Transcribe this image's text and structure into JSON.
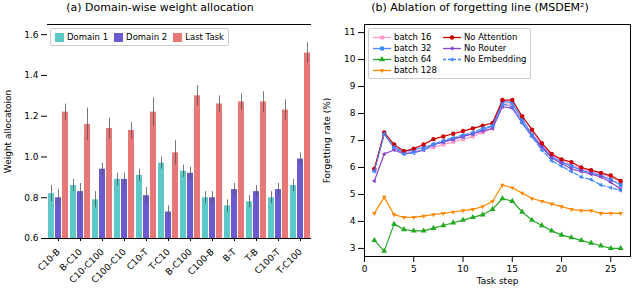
{
  "chart_data": [
    {
      "type": "bar",
      "title": "(a) Domain-wise weight allocation",
      "categories": [
        "C10-B",
        "B-C10",
        "C10-C100",
        "C100-C10",
        "C10-T",
        "T-C10",
        "B-C100",
        "C100-B",
        "B-T",
        "T-B",
        "C100-T",
        "T-C100"
      ],
      "series": [
        {
          "name": "Domain 1",
          "color": "#5ec8c8",
          "values": [
            0.82,
            0.86,
            0.79,
            0.89,
            0.91,
            0.97,
            0.93,
            0.8,
            0.76,
            0.78,
            0.8,
            0.86
          ],
          "errors": [
            0.04,
            0.03,
            0.04,
            0.03,
            0.03,
            0.03,
            0.03,
            0.03,
            0.03,
            0.03,
            0.03,
            0.03
          ]
        },
        {
          "name": "Domain 2",
          "color": "#6a5acd",
          "values": [
            0.8,
            0.83,
            0.94,
            0.89,
            0.81,
            0.73,
            0.92,
            0.8,
            0.84,
            0.83,
            0.84,
            0.99
          ],
          "errors": [
            0.04,
            0.04,
            0.03,
            0.03,
            0.04,
            0.03,
            0.03,
            0.03,
            0.03,
            0.03,
            0.03,
            0.03
          ]
        },
        {
          "name": "Last Task",
          "color": "#e87878",
          "values": [
            1.22,
            1.16,
            1.14,
            1.13,
            1.22,
            1.02,
            1.3,
            1.26,
            1.27,
            1.27,
            1.23,
            1.51
          ],
          "errors": [
            0.04,
            0.08,
            0.05,
            0.04,
            0.07,
            0.06,
            0.05,
            0.04,
            0.04,
            0.05,
            0.05,
            0.05
          ]
        }
      ],
      "ylabel": "Weight allocatoion",
      "ylim": [
        0.6,
        1.65
      ],
      "yticks": [
        0.6,
        0.8,
        {
          "value": 1.0,
          "label": "1.0"
        },
        1.2,
        1.4,
        1.6
      ],
      "legend": "upper left"
    },
    {
      "type": "line",
      "title": "(b) Ablation of forgetting line (MSDEM²)",
      "x": [
        1,
        2,
        3,
        4,
        5,
        6,
        7,
        8,
        9,
        10,
        11,
        12,
        13,
        14,
        15,
        16,
        17,
        18,
        19,
        20,
        21,
        22,
        23,
        24,
        25,
        26
      ],
      "series": [
        {
          "name": "batch 16",
          "color": "#ff99cc",
          "marker": "square",
          "line_style": "solid",
          "values": [
            5.9,
            7.25,
            6.7,
            6.55,
            6.6,
            6.65,
            6.75,
            6.85,
            6.95,
            7.05,
            7.15,
            7.3,
            7.45,
            8.35,
            8.35,
            7.75,
            7.25,
            6.85,
            6.45,
            6.25,
            6.1,
            5.95,
            5.85,
            5.75,
            5.65,
            5.45
          ]
        },
        {
          "name": "batch 32",
          "color": "#4488ff",
          "marker": "square",
          "line_style": "solid",
          "values": [
            5.9,
            7.25,
            6.75,
            6.6,
            6.65,
            6.75,
            6.85,
            6.95,
            7.05,
            7.15,
            7.25,
            7.4,
            7.55,
            8.45,
            8.4,
            7.8,
            7.2,
            6.8,
            6.4,
            6.2,
            6.05,
            5.9,
            5.8,
            5.7,
            5.55,
            5.35
          ]
        },
        {
          "name": "batch 64",
          "color": "#22aa22",
          "marker": "triangle-up",
          "line_style": "solid",
          "values": [
            3.3,
            2.9,
            3.9,
            3.7,
            3.65,
            3.65,
            3.75,
            3.85,
            3.95,
            4.05,
            4.15,
            4.25,
            4.45,
            4.85,
            4.75,
            4.35,
            4.05,
            3.85,
            3.65,
            3.5,
            3.4,
            3.3,
            3.2,
            3.1,
            3.0,
            3.0
          ]
        },
        {
          "name": "batch 128",
          "color": "#ff8800",
          "marker": "triangle-down",
          "line_style": "solid",
          "values": [
            4.3,
            4.9,
            4.25,
            4.15,
            4.15,
            4.2,
            4.25,
            4.3,
            4.35,
            4.4,
            4.45,
            4.55,
            4.75,
            5.35,
            5.25,
            5.05,
            4.85,
            4.75,
            4.65,
            4.55,
            4.45,
            4.4,
            4.4,
            4.3,
            4.3,
            4.3
          ]
        },
        {
          "name": "No Attention",
          "color": "#cc0000",
          "marker": "circle",
          "line_style": "solid",
          "values": [
            5.95,
            7.3,
            6.85,
            6.6,
            6.7,
            6.85,
            7.05,
            7.15,
            7.25,
            7.35,
            7.45,
            7.55,
            7.65,
            8.5,
            8.5,
            7.9,
            7.4,
            6.9,
            6.5,
            6.3,
            6.2,
            6.0,
            5.9,
            5.8,
            5.7,
            5.5
          ]
        },
        {
          "name": "No Router",
          "color": "#8844cc",
          "marker": "triangle-left",
          "line_style": "solid",
          "values": [
            5.5,
            6.5,
            6.65,
            6.5,
            6.55,
            6.65,
            6.85,
            6.95,
            7.05,
            7.15,
            7.25,
            7.35,
            7.45,
            8.25,
            8.2,
            7.65,
            7.15,
            6.75,
            6.35,
            6.15,
            5.95,
            5.85,
            5.75,
            5.65,
            5.45,
            5.2
          ]
        },
        {
          "name": "No Embedding",
          "color": "#4488ff",
          "marker": "triangle-left",
          "line_style": "dashed",
          "values": [
            5.85,
            7.25,
            6.75,
            6.5,
            6.55,
            6.65,
            6.85,
            7.0,
            7.1,
            7.2,
            7.3,
            7.45,
            7.55,
            8.35,
            8.25,
            7.65,
            7.15,
            6.65,
            6.25,
            6.05,
            5.85,
            5.65,
            5.55,
            5.35,
            5.25,
            5.15
          ]
        }
      ],
      "xlabel": "Task step",
      "ylabel": "Forgetting rate (%)",
      "xlim": [
        0,
        27
      ],
      "xticks": [
        0,
        5,
        10,
        15,
        20,
        25
      ],
      "ylim": [
        2.7,
        11.3
      ],
      "yticks": [
        3,
        4,
        5,
        6,
        7,
        8,
        9,
        10,
        11
      ],
      "legend": "upper left"
    }
  ]
}
